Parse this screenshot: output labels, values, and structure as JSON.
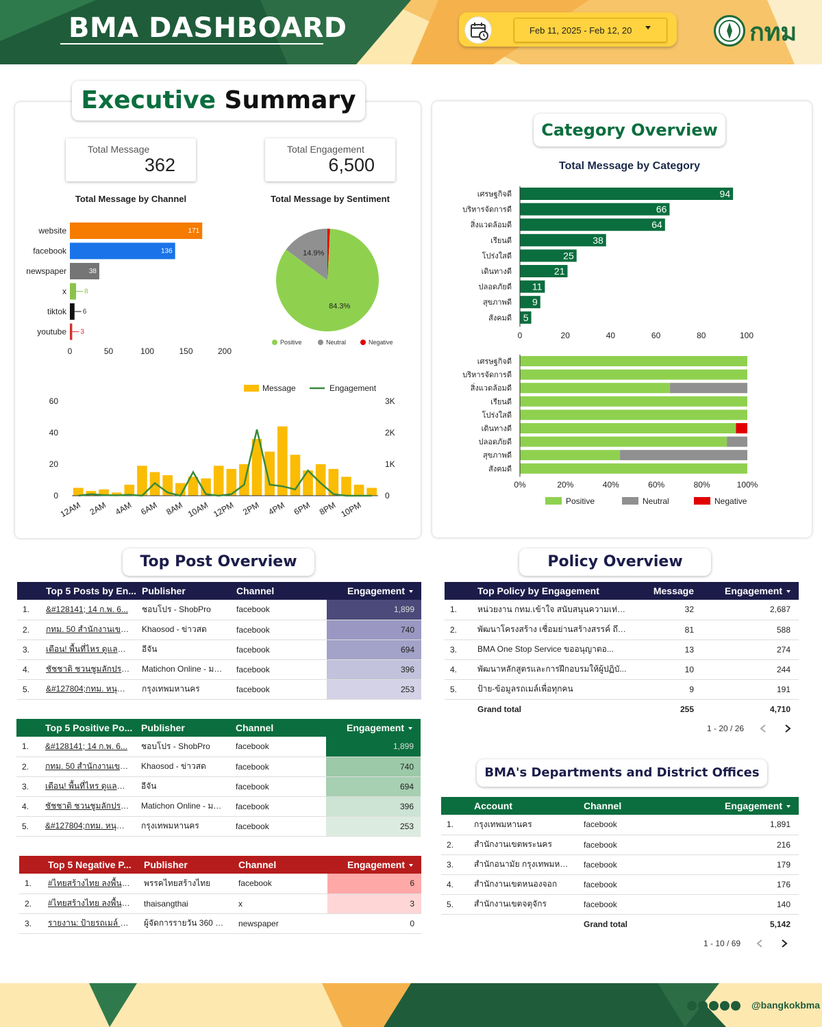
{
  "header": {
    "title": "BMA DASHBOARD",
    "date_range": "Feb 11, 2025 - Feb 12, 20",
    "logo_text": "กทม",
    "colors": {
      "dark_green": "#1f5c3a",
      "yellow": "#ffd23f",
      "orange": "#f5b24c",
      "cream": "#fde8b0"
    }
  },
  "executive": {
    "title_a": "Executive",
    "title_b": "Summary",
    "kpi_message_label": "Total Message",
    "kpi_message_value": "362",
    "kpi_engagement_label": "Total Engagement",
    "kpi_engagement_value": "6,500"
  },
  "category_overview": {
    "title": "Category Overview"
  },
  "chart_data": [
    {
      "type": "bar",
      "orientation": "horizontal",
      "title": "Total Message by Channel",
      "categories": [
        "website",
        "facebook",
        "newspaper",
        "x",
        "tiktok",
        "youtube"
      ],
      "values": [
        171,
        136,
        38,
        8,
        6,
        3
      ],
      "colors": [
        "#f57c00",
        "#1a73e8",
        "#757575",
        "#8bc34a",
        "#111111",
        "#d32f2f"
      ],
      "xlim": [
        0,
        200
      ],
      "xticks": [
        "0",
        "50",
        "100",
        "150",
        "200"
      ]
    },
    {
      "type": "pie",
      "title": "Total Message by Sentiment",
      "labels": [
        "Positive",
        "Neutral",
        "Negative"
      ],
      "values": [
        84.3,
        14.9,
        0.8
      ],
      "slice_labels": [
        "84.3%",
        "14.9%",
        ""
      ],
      "colors": [
        "#8fd14f",
        "#909090",
        "#e00000"
      ],
      "legend": "bottom"
    },
    {
      "type": "bar_line",
      "categories": [
        "12AM",
        "1AM",
        "2AM",
        "3AM",
        "4AM",
        "5AM",
        "6AM",
        "7AM",
        "8AM",
        "9AM",
        "10AM",
        "11AM",
        "12PM",
        "1PM",
        "2PM",
        "3PM",
        "4PM",
        "5PM",
        "6PM",
        "7PM",
        "8PM",
        "9PM",
        "10PM",
        "11PM"
      ],
      "xticks": [
        "12AM",
        "2AM",
        "4AM",
        "6AM",
        "8AM",
        "10AM",
        "12PM",
        "2PM",
        "4PM",
        "6PM",
        "8PM",
        "10PM"
      ],
      "series": [
        {
          "name": "Message",
          "type": "bar",
          "axis": "left",
          "color": "#fbbc04",
          "values": [
            5,
            3,
            4,
            2,
            7,
            19,
            15,
            13,
            8,
            12,
            11,
            19,
            17,
            20,
            36,
            28,
            44,
            26,
            16,
            20,
            17,
            12,
            7,
            5
          ]
        },
        {
          "name": "Engagement",
          "type": "line",
          "axis": "right",
          "color": "#3a8a3a",
          "values": [
            0,
            50,
            20,
            10,
            30,
            0,
            400,
            100,
            0,
            750,
            50,
            0,
            50,
            350,
            2100,
            350,
            300,
            200,
            800,
            400,
            50,
            0,
            0,
            0
          ]
        }
      ],
      "ylim_left": [
        0,
        60
      ],
      "yticks_left": [
        "0",
        "20",
        "40",
        "60"
      ],
      "ylim_right": [
        0,
        3000
      ],
      "yticks_right": [
        "0",
        "1K",
        "2K",
        "3K"
      ],
      "legend": "top-right"
    },
    {
      "type": "bar",
      "orientation": "horizontal",
      "title": "Total Message by Category",
      "categories": [
        "เศรษฐกิจดี",
        "บริหารจัดการดี",
        "สิ่งแวดล้อมดี",
        "เรียนดี",
        "โปร่งใสดี",
        "เดินทางดี",
        "ปลอดภัยดี",
        "สุขภาพดี",
        "สังคมดี"
      ],
      "values": [
        94,
        66,
        64,
        38,
        25,
        21,
        11,
        9,
        5
      ],
      "color": "#0b6e3e",
      "xlim": [
        0,
        100
      ],
      "xticks": [
        "0",
        "20",
        "40",
        "60",
        "80",
        "100"
      ]
    },
    {
      "type": "bar",
      "orientation": "horizontal",
      "stacked": "percent",
      "categories": [
        "เศรษฐกิจดี",
        "บริหารจัดการดี",
        "สิ่งแวดล้อมดี",
        "เรียนดี",
        "โปร่งใสดี",
        "เดินทางดี",
        "ปลอดภัยดี",
        "สุขภาพดี",
        "สังคมดี"
      ],
      "series": [
        {
          "name": "Positive",
          "color": "#8fd14f",
          "values": [
            100,
            100,
            66,
            100,
            100,
            95,
            91,
            44,
            100
          ]
        },
        {
          "name": "Neutral",
          "color": "#909090",
          "values": [
            0,
            0,
            34,
            0,
            0,
            0,
            9,
            56,
            0
          ]
        },
        {
          "name": "Negative",
          "color": "#e00000",
          "values": [
            0,
            0,
            0,
            0,
            0,
            5,
            0,
            0,
            0
          ]
        }
      ],
      "xticks": [
        "0%",
        "20%",
        "40%",
        "60%",
        "80%",
        "100%"
      ],
      "legend": "bottom"
    }
  ],
  "top_post": {
    "title": "Top Post Overview",
    "engagement_table": {
      "header_color": "#1c1c4a",
      "columns": [
        "Top 5 Posts by En...",
        "Publisher",
        "Channel",
        "Engagement"
      ],
      "rows": [
        {
          "idx": "1.",
          "post": "&#128141; 14 ก.พ. 6...",
          "publisher": "ชอบโปร - ShobPro",
          "channel": "facebook",
          "engagement": "1,899",
          "shade": "#4c4a7a"
        },
        {
          "idx": "2.",
          "post": "กทม. 50 สำนักงานเขต พ...",
          "publisher": "Khaosod - ข่าวสด",
          "channel": "facebook",
          "engagement": "740",
          "shade": "#9a98c2"
        },
        {
          "idx": "3.",
          "post": "เตือน! พื้นที่ไหร ดูแลตัว ผู้ว่...",
          "publisher": "อีจัน",
          "channel": "facebook",
          "engagement": "694",
          "shade": "#a3a2c8"
        },
        {
          "idx": "4.",
          "post": "ชัชชาติ ชวนชูมลักประวัติศ...",
          "publisher": "Matichon Online - มติ...",
          "channel": "facebook",
          "engagement": "396",
          "shade": "#c3c2dc"
        },
        {
          "idx": "5.",
          "post": "&#127804;กทม. หนุนใ...",
          "publisher": "กรุงเทพมหานคร",
          "channel": "facebook",
          "engagement": "253",
          "shade": "#d3d2e6"
        }
      ]
    },
    "positive_table": {
      "header_color": "#0b6e3e",
      "columns": [
        "Top 5 Positive Po...",
        "Publisher",
        "Channel",
        "Engagement"
      ],
      "rows": [
        {
          "idx": "1.",
          "post": "&#128141; 14 ก.พ. 6...",
          "publisher": "ชอบโปร - ShobPro",
          "channel": "facebook",
          "engagement": "1,899",
          "shade": "#0b6e3e"
        },
        {
          "idx": "2.",
          "post": "กทม. 50 สำนักงานเขต พ...",
          "publisher": "Khaosod - ข่าวสด",
          "channel": "facebook",
          "engagement": "740",
          "shade": "#9cc9a8"
        },
        {
          "idx": "3.",
          "post": "เตือน! พื้นที่ไหร ดูแลตัว ผู้ว่...",
          "publisher": "อีจัน",
          "channel": "facebook",
          "engagement": "694",
          "shade": "#a7cfb2"
        },
        {
          "idx": "4.",
          "post": "ชัชชาติ ชวนชูมลักประวัติศ...",
          "publisher": "Matichon Online - มติ...",
          "channel": "facebook",
          "engagement": "396",
          "shade": "#cde3d3"
        },
        {
          "idx": "5.",
          "post": "&#127804;กทม. หนุนใ...",
          "publisher": "กรุงเทพมหานคร",
          "channel": "facebook",
          "engagement": "253",
          "shade": "#dcebe0"
        }
      ]
    },
    "negative_table": {
      "header_color": "#b71c1c",
      "columns": [
        "Top 5 Negative P...",
        "Publisher",
        "Channel",
        "Engagement"
      ],
      "rows": [
        {
          "idx": "1.",
          "post": "#ไทยสร้างไทย ลงพื้นที่ #...",
          "publisher": "พรรคไทยสร้างไทย",
          "channel": "facebook",
          "engagement": "6",
          "shade": "#ffa8a8"
        },
        {
          "idx": "2.",
          "post": "#ไทยสร้างไทย ลงพื้นที่ #...",
          "publisher": "thaisangthai",
          "channel": "x",
          "engagement": "3",
          "shade": "#ffd6d6"
        },
        {
          "idx": "3.",
          "post": "รายงาน: ป้ายรถเมล์ 3 ผู้ว่...",
          "publisher": "ผู้จัดการรายวัน 360 องศา",
          "channel": "newspaper",
          "engagement": "0",
          "shade": "#ffffff"
        }
      ]
    }
  },
  "policy": {
    "title": "Policy Overview",
    "header_color": "#1c1c4a",
    "columns": [
      "Top Policy by Engagement",
      "Message",
      "Engagement"
    ],
    "rows": [
      {
        "idx": "1.",
        "policy": "หน่วยงาน กทม.เข้าใจ สนับสนุนความเท่า...",
        "message": "32",
        "engagement": "2,687"
      },
      {
        "idx": "2.",
        "policy": "พัฒนาโครงสร้าง เชื่อมย่านสร้างสรรค์ ถึงถั...",
        "message": "81",
        "engagement": "588"
      },
      {
        "idx": "3.",
        "policy": "BMA One Stop Service ขออนุญาตอ...",
        "message": "13",
        "engagement": "274"
      },
      {
        "idx": "4.",
        "policy": "พัฒนาหลักสูตรและการฝึกอบรมให้ผู้ปฏิบั...",
        "message": "10",
        "engagement": "244"
      },
      {
        "idx": "5.",
        "policy": "ป้าย-ข้อมูลรถเมล์เพื่อทุกคน",
        "message": "9",
        "engagement": "191"
      }
    ],
    "grand_total_label": "Grand total",
    "grand_total_message": "255",
    "grand_total_engagement": "4,710",
    "pager": "1 - 20 / 26"
  },
  "departments": {
    "title": "BMA's Departments and District Offices",
    "header_color": "#0b6e3e",
    "columns": [
      "Account",
      "Channel",
      "Engagement"
    ],
    "rows": [
      {
        "idx": "1.",
        "account": "กรุงเทพมหานคร",
        "channel": "facebook",
        "engagement": "1,891"
      },
      {
        "idx": "2.",
        "account": "สำนักงานเขตพระนคร",
        "channel": "facebook",
        "engagement": "216"
      },
      {
        "idx": "3.",
        "account": "สำนักอนามัย กรุงเทพมหานคร",
        "channel": "facebook",
        "engagement": "179"
      },
      {
        "idx": "4.",
        "account": "สำนักงานเขตหนองจอก",
        "channel": "facebook",
        "engagement": "176"
      },
      {
        "idx": "5.",
        "account": "สำนักงานเขตจตุจักร",
        "channel": "facebook",
        "engagement": "140"
      }
    ],
    "grand_total_label": "Grand total",
    "grand_total_engagement": "5,142",
    "pager": "1 - 10 / 69"
  },
  "footer": {
    "social_handle": "@bangkokbma",
    "icons": [
      "x-icon",
      "facebook-icon",
      "instagram-icon",
      "youtube-icon",
      "tiktok-icon"
    ]
  }
}
